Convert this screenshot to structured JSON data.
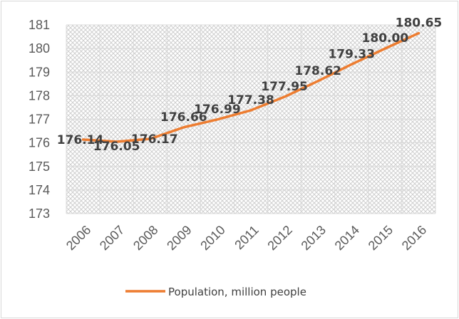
{
  "chart_data": {
    "type": "line",
    "title": "",
    "xlabel": "",
    "ylabel": "",
    "categories": [
      "2006",
      "2007",
      "2008",
      "2009",
      "2010",
      "2011",
      "2012",
      "2013",
      "2014",
      "2015",
      "2016"
    ],
    "series": [
      {
        "name": "Population, million people",
        "values": [
          176.14,
          176.05,
          176.17,
          176.66,
          176.99,
          177.38,
          177.95,
          178.62,
          179.33,
          180.0,
          180.65
        ],
        "data_labels": [
          "176.14",
          "176.05",
          "176.17",
          "176.66",
          "176.99",
          "177.38",
          "177.95",
          "178.62",
          "179.33",
          "180.00",
          "180.65"
        ],
        "color": "#ed7d31"
      }
    ],
    "y_ticks": [
      "173",
      "174",
      "175",
      "176",
      "177",
      "178",
      "179",
      "180",
      "181"
    ],
    "ylim": [
      173,
      181
    ],
    "grid": true,
    "plot_fill": "hatched",
    "legend": "bottom"
  }
}
